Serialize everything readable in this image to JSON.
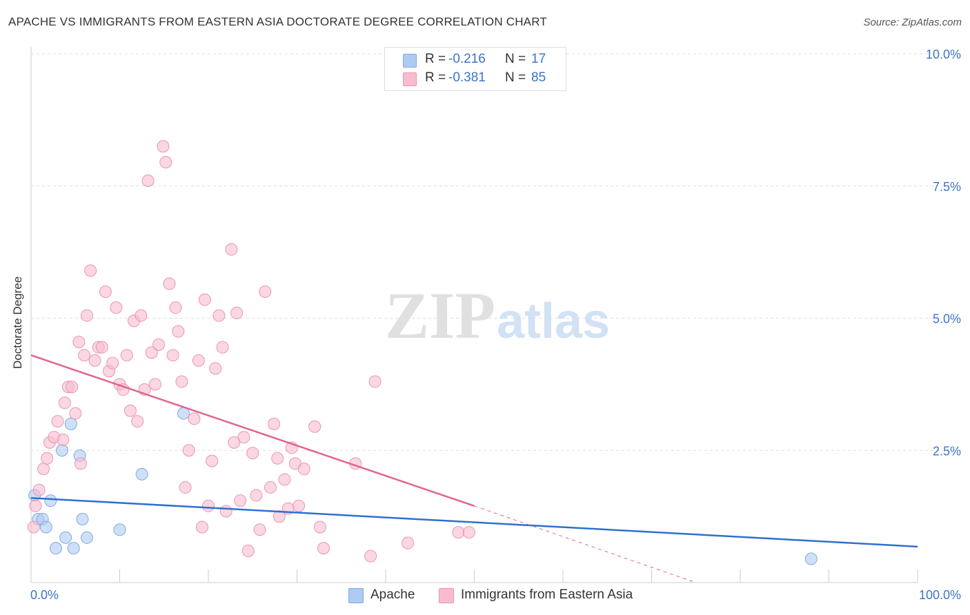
{
  "header": {
    "title": "APACHE VS IMMIGRANTS FROM EASTERN ASIA DOCTORATE DEGREE CORRELATION CHART",
    "source": "Source: ZipAtlas.com"
  },
  "watermark": {
    "part1": "ZIP",
    "part2": "atlas"
  },
  "legend": {
    "r_label": "R =",
    "n_label": "N =",
    "items": [
      {
        "r": "-0.216",
        "n": "17",
        "color": "#aecbf2"
      },
      {
        "r": "-0.381",
        "n": "85",
        "color": "#f7bcd0"
      }
    ]
  },
  "bottom_legend": [
    {
      "label": "Apache",
      "color": "#aecbf2"
    },
    {
      "label": "Immigrants from Eastern Asia",
      "color": "#f7bcd0"
    }
  ],
  "colors": {
    "apache_line": "#2f6fcf",
    "immigrants_line": "#e2628e",
    "axis_text": "#3c74c9",
    "grid": "#dddddd"
  },
  "chart_data": {
    "type": "scatter",
    "title": "APACHE VS IMMIGRANTS FROM EASTERN ASIA DOCTORATE DEGREE CORRELATION CHART",
    "xlabel": "",
    "ylabel": "Doctorate Degree",
    "xlim": [
      0,
      100
    ],
    "ylim": [
      0,
      10
    ],
    "x_tick_labels": [
      "0.0%",
      "100.0%"
    ],
    "y_ticks": [
      2.5,
      5.0,
      7.5,
      10.0
    ],
    "y_tick_labels": [
      "2.5%",
      "5.0%",
      "7.5%",
      "10.0%"
    ],
    "grid": "horizontal dashed",
    "series": [
      {
        "name": "Apache",
        "color": "#aecbf2",
        "points": [
          [
            0.4,
            1.65
          ],
          [
            0.8,
            1.2
          ],
          [
            1.3,
            1.2
          ],
          [
            1.7,
            1.05
          ],
          [
            2.2,
            1.55
          ],
          [
            2.8,
            0.65
          ],
          [
            3.5,
            2.5
          ],
          [
            3.9,
            0.85
          ],
          [
            4.5,
            3.0
          ],
          [
            4.8,
            0.65
          ],
          [
            5.5,
            2.4
          ],
          [
            5.8,
            1.2
          ],
          [
            6.3,
            0.85
          ],
          [
            10.0,
            1.0
          ],
          [
            12.5,
            2.05
          ],
          [
            17.2,
            3.2
          ],
          [
            88.0,
            0.45
          ]
        ],
        "trend": {
          "x": [
            0,
            100
          ],
          "y": [
            1.6,
            0.68
          ]
        }
      },
      {
        "name": "Immigrants from Eastern Asia",
        "color": "#f7bcd0",
        "points": [
          [
            0.3,
            1.05
          ],
          [
            0.5,
            1.45
          ],
          [
            0.9,
            1.75
          ],
          [
            1.4,
            2.15
          ],
          [
            1.8,
            2.35
          ],
          [
            2.1,
            2.65
          ],
          [
            2.6,
            2.75
          ],
          [
            3.0,
            3.05
          ],
          [
            3.6,
            2.7
          ],
          [
            3.8,
            3.4
          ],
          [
            4.2,
            3.7
          ],
          [
            4.6,
            3.7
          ],
          [
            5.0,
            3.2
          ],
          [
            5.4,
            4.55
          ],
          [
            5.6,
            2.25
          ],
          [
            6.0,
            4.3
          ],
          [
            6.3,
            5.05
          ],
          [
            6.7,
            5.9
          ],
          [
            7.2,
            4.2
          ],
          [
            7.6,
            4.45
          ],
          [
            8.0,
            4.45
          ],
          [
            8.4,
            5.5
          ],
          [
            8.8,
            4.0
          ],
          [
            9.2,
            4.15
          ],
          [
            9.6,
            5.2
          ],
          [
            10.0,
            3.75
          ],
          [
            10.4,
            3.65
          ],
          [
            10.8,
            4.3
          ],
          [
            11.2,
            3.25
          ],
          [
            11.6,
            4.95
          ],
          [
            12.0,
            3.05
          ],
          [
            12.4,
            5.05
          ],
          [
            12.8,
            3.65
          ],
          [
            13.2,
            7.6
          ],
          [
            13.6,
            4.35
          ],
          [
            14.0,
            3.75
          ],
          [
            14.4,
            4.5
          ],
          [
            14.9,
            8.25
          ],
          [
            15.2,
            7.95
          ],
          [
            15.6,
            5.65
          ],
          [
            16.0,
            4.3
          ],
          [
            16.3,
            5.2
          ],
          [
            16.6,
            4.75
          ],
          [
            17.0,
            3.8
          ],
          [
            17.4,
            1.8
          ],
          [
            17.8,
            2.5
          ],
          [
            18.4,
            3.1
          ],
          [
            18.9,
            4.2
          ],
          [
            19.3,
            1.05
          ],
          [
            19.6,
            5.35
          ],
          [
            20.0,
            1.45
          ],
          [
            20.4,
            2.3
          ],
          [
            20.8,
            4.05
          ],
          [
            21.2,
            5.05
          ],
          [
            21.6,
            4.45
          ],
          [
            22.0,
            1.35
          ],
          [
            22.6,
            6.3
          ],
          [
            22.9,
            2.65
          ],
          [
            23.2,
            5.1
          ],
          [
            23.6,
            1.55
          ],
          [
            24.0,
            2.75
          ],
          [
            24.5,
            0.6
          ],
          [
            25.0,
            2.45
          ],
          [
            25.4,
            1.65
          ],
          [
            25.8,
            1.0
          ],
          [
            26.4,
            5.5
          ],
          [
            27.0,
            1.8
          ],
          [
            27.4,
            3.0
          ],
          [
            27.8,
            2.35
          ],
          [
            28.0,
            1.25
          ],
          [
            28.6,
            1.95
          ],
          [
            29.0,
            1.4
          ],
          [
            29.4,
            2.55
          ],
          [
            29.8,
            2.25
          ],
          [
            30.2,
            1.45
          ],
          [
            30.8,
            2.15
          ],
          [
            32.0,
            2.95
          ],
          [
            32.6,
            1.05
          ],
          [
            33.0,
            0.65
          ],
          [
            36.6,
            2.25
          ],
          [
            38.3,
            0.5
          ],
          [
            38.8,
            3.8
          ],
          [
            42.5,
            0.75
          ],
          [
            48.2,
            0.95
          ],
          [
            49.4,
            0.95
          ]
        ],
        "trend": {
          "x": [
            0,
            50
          ],
          "y": [
            4.3,
            1.45
          ]
        },
        "trend_dashed": {
          "x": [
            50,
            75
          ],
          "y": [
            1.45,
            0.0
          ]
        }
      }
    ]
  }
}
